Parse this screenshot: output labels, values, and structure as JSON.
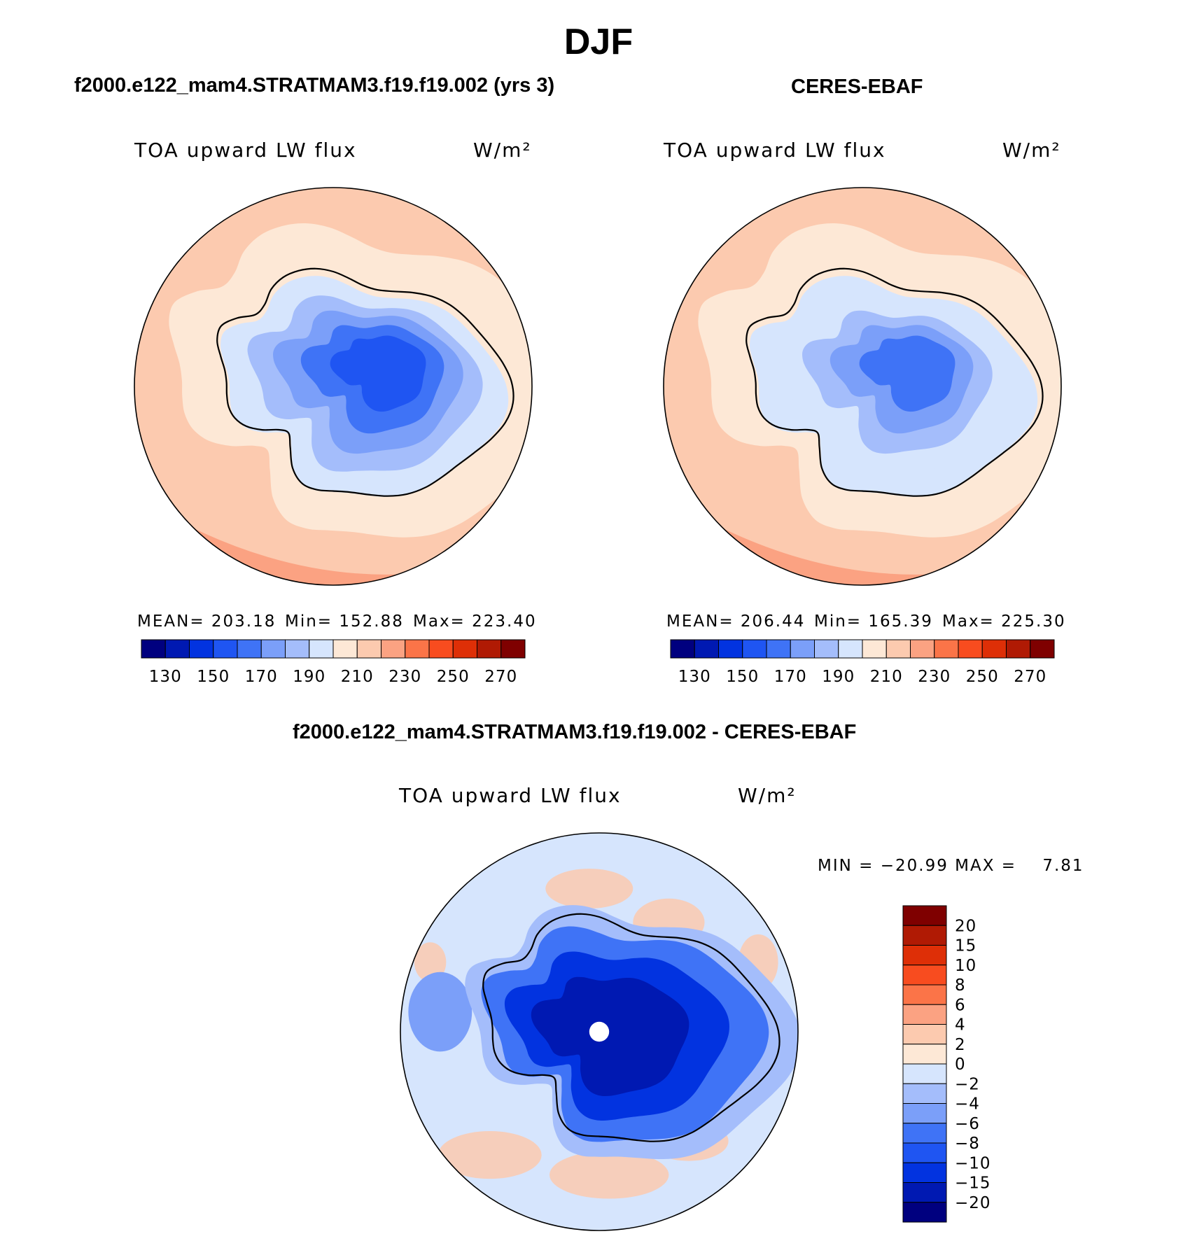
{
  "page_title": "DJF",
  "colors": {
    "outline": "#000000",
    "background": "#ffffff",
    "abs_palette": [
      "#00007f",
      "#0019b2",
      "#0233e0",
      "#1f55f2",
      "#3f73f6",
      "#7b9ff9",
      "#a4bdfb",
      "#d6e5fd",
      "#fde8d6",
      "#fccaaf",
      "#fba282",
      "#fb7448",
      "#f84c1f",
      "#de2f07",
      "#b01a04",
      "#7f0000"
    ],
    "diff_palette": [
      "#00007f",
      "#0019b2",
      "#0233e0",
      "#1f55f2",
      "#3f73f6",
      "#7b9ff9",
      "#a4bdfb",
      "#d6e5fd",
      "#fde8d6",
      "#fccaaf",
      "#fba282",
      "#fb7448",
      "#f84c1f",
      "#de2f07",
      "#b01a04",
      "#7f0000"
    ]
  },
  "panels": [
    {
      "case_title": "f2000.e122_mam4.STRATMAM3.f19.f19.002 (yrs 3)",
      "variable": "TOA upward LW flux",
      "units": "W/m²",
      "mean_label": "MEAN= 203.18",
      "min_label": "Min= 152.88",
      "max_label": "Max= 223.40"
    },
    {
      "case_title": "CERES-EBAF",
      "variable": "TOA upward LW flux",
      "units": "W/m²",
      "mean_label": "MEAN= 206.44",
      "min_label": "Min= 165.39",
      "max_label": "Max= 225.30"
    },
    {
      "case_title": "f2000.e122_mam4.STRATMAM3.f19.f19.002 - CERES-EBAF",
      "variable": "TOA upward LW flux",
      "units": "W/m²",
      "minmax_label": "MIN = −20.99 MAX =    7.81"
    }
  ],
  "chart_data": [
    {
      "type": "heatmap",
      "projection": "south polar stereographic",
      "title": "f2000.e122_mam4.STRATMAM3.f19.f19.002 (yrs 3)",
      "variable": "TOA upward LW flux",
      "units": "W/m2",
      "mean": 203.18,
      "min": 152.88,
      "max": 223.4,
      "colorbar_ticks": [
        130,
        150,
        170,
        190,
        210,
        230,
        250,
        270
      ],
      "colorbar_levels": [
        130,
        140,
        150,
        160,
        170,
        180,
        190,
        200,
        210,
        220,
        230,
        240,
        250,
        260,
        270
      ],
      "field": {
        "ocean_level_index": 9,
        "outer_band_level_index": 10,
        "coastal_level_index": 8,
        "ice_levels": [
          7,
          6,
          5,
          4,
          3
        ]
      }
    },
    {
      "type": "heatmap",
      "projection": "south polar stereographic",
      "title": "CERES-EBAF",
      "variable": "TOA upward LW flux",
      "units": "W/m2",
      "mean": 206.44,
      "min": 165.39,
      "max": 225.3,
      "colorbar_ticks": [
        130,
        150,
        170,
        190,
        210,
        230,
        250,
        270
      ],
      "colorbar_levels": [
        130,
        140,
        150,
        160,
        170,
        180,
        190,
        200,
        210,
        220,
        230,
        240,
        250,
        260,
        270
      ],
      "field": {
        "ocean_level_index": 9,
        "outer_band_level_index": 10,
        "coastal_level_index": 8,
        "ice_levels": [
          7,
          7,
          6,
          5,
          4
        ]
      }
    },
    {
      "type": "heatmap",
      "projection": "south polar stereographic",
      "title": "f2000.e122_mam4.STRATMAM3.f19.f19.002 - CERES-EBAF",
      "variable": "TOA upward LW flux",
      "units": "W/m2",
      "min": -20.99,
      "max": 7.81,
      "colorbar_ticks": [
        "20",
        "15",
        "10",
        "8",
        "6",
        "4",
        "2",
        "0",
        "−2",
        "−4",
        "−6",
        "−8",
        "−10",
        "−15",
        "−20"
      ],
      "colorbar_levels": [
        -20,
        -15,
        -10,
        -8,
        -6,
        -4,
        -2,
        0,
        2,
        4,
        6,
        8,
        10,
        15,
        20
      ],
      "field": {
        "ocean_level_index": 7,
        "positive_patch_level_index": 9,
        "ice_levels": [
          6,
          4,
          2,
          1
        ]
      }
    }
  ]
}
